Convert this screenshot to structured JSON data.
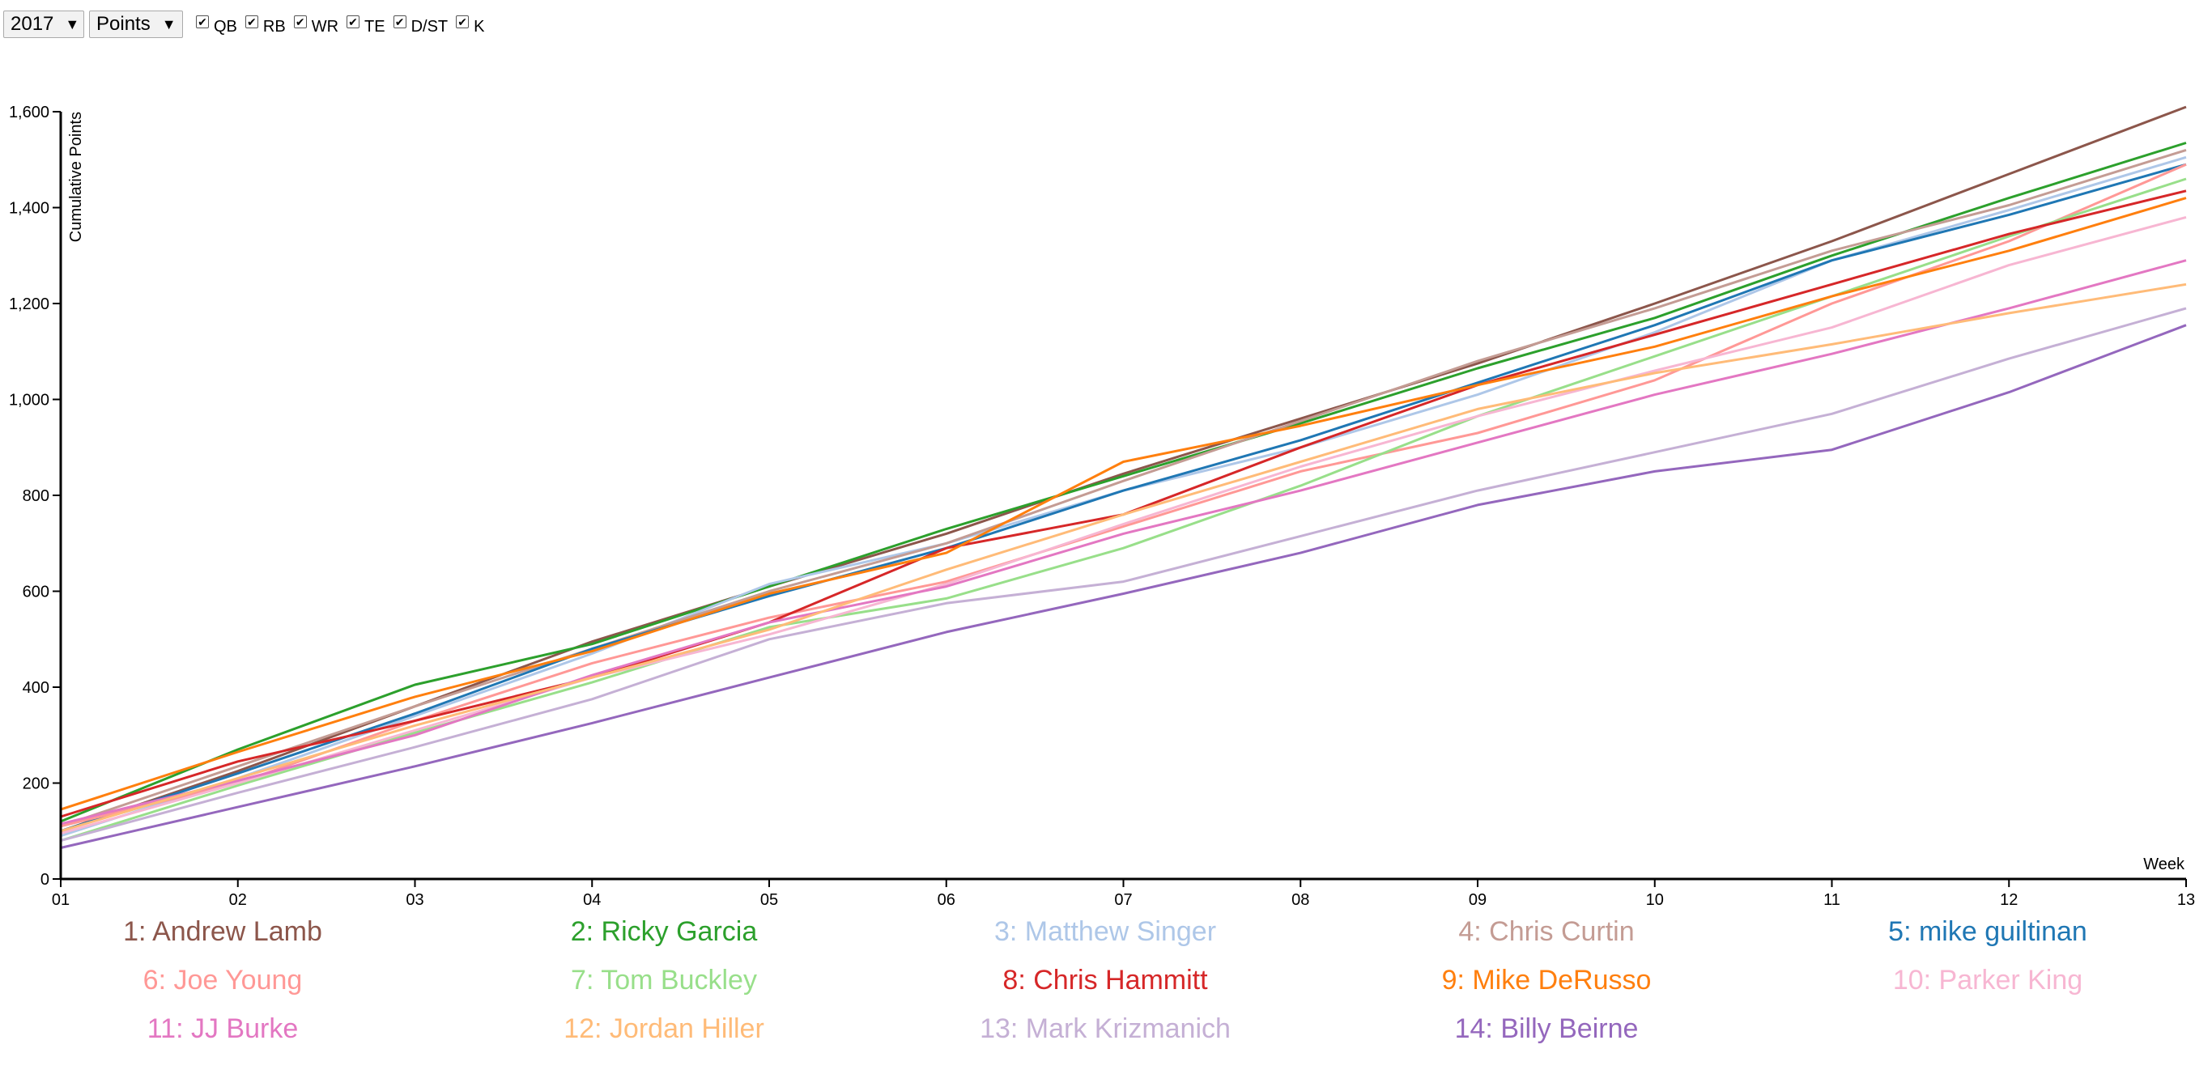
{
  "controls": {
    "year": "2017",
    "metric": "Points",
    "positions": [
      {
        "label": "QB",
        "checked": true
      },
      {
        "label": "RB",
        "checked": true
      },
      {
        "label": "WR",
        "checked": true
      },
      {
        "label": "TE",
        "checked": true
      },
      {
        "label": "D/ST",
        "checked": true
      },
      {
        "label": "K",
        "checked": true
      }
    ]
  },
  "chart_data": {
    "type": "line",
    "xlabel": "Week",
    "ylabel": "Cumulative Points",
    "x": [
      "01",
      "02",
      "03",
      "04",
      "05",
      "06",
      "07",
      "08",
      "09",
      "10",
      "11",
      "12",
      "13"
    ],
    "ylim": [
      0,
      1600
    ],
    "yticks": [
      0,
      200,
      400,
      600,
      800,
      1000,
      1200,
      1400,
      1600
    ],
    "ytick_labels": [
      "0",
      "200",
      "400",
      "600",
      "800",
      "1,000",
      "1,200",
      "1,400",
      "1,600"
    ],
    "grid": false,
    "legend_position": "bottom",
    "series": [
      {
        "name": "1: Andrew Lamb",
        "color": "#8c564b",
        "values": [
          100,
          225,
          360,
          495,
          610,
          720,
          845,
          960,
          1075,
          1200,
          1330,
          1470,
          1610
        ]
      },
      {
        "name": "2: Ricky Garcia",
        "color": "#2ca02c",
        "values": [
          120,
          270,
          405,
          490,
          610,
          730,
          840,
          950,
          1065,
          1170,
          1300,
          1420,
          1535
        ]
      },
      {
        "name": "3: Matthew Singer",
        "color": "#aec7e8",
        "values": [
          90,
          210,
          340,
          470,
          615,
          700,
          810,
          900,
          1010,
          1140,
          1290,
          1395,
          1505
        ]
      },
      {
        "name": "4: Chris Curtin",
        "color": "#c49c94",
        "values": [
          110,
          235,
          360,
          480,
          600,
          700,
          830,
          955,
          1080,
          1190,
          1310,
          1405,
          1520
        ]
      },
      {
        "name": "5: mike guiltinan",
        "color": "#1f77b4",
        "values": [
          100,
          220,
          345,
          480,
          590,
          690,
          810,
          915,
          1035,
          1155,
          1290,
          1385,
          1490
        ]
      },
      {
        "name": "6: Joe Young",
        "color": "#ff9896",
        "values": [
          110,
          200,
          330,
          450,
          545,
          620,
          735,
          850,
          930,
          1040,
          1200,
          1330,
          1490
        ]
      },
      {
        "name": "7: Tom Buckley",
        "color": "#98df8a",
        "values": [
          80,
          195,
          305,
          410,
          525,
          585,
          690,
          820,
          965,
          1090,
          1215,
          1340,
          1460
        ]
      },
      {
        "name": "8: Chris Hammitt",
        "color": "#d62728",
        "values": [
          130,
          245,
          330,
          420,
          535,
          690,
          760,
          900,
          1030,
          1135,
          1240,
          1345,
          1435
        ]
      },
      {
        "name": "9: Mike DeRusso",
        "color": "#ff7f0e",
        "values": [
          145,
          265,
          380,
          475,
          595,
          680,
          870,
          945,
          1030,
          1110,
          1215,
          1310,
          1420
        ]
      },
      {
        "name": "10: Parker King",
        "color": "#f7b6d2",
        "values": [
          95,
          200,
          310,
          420,
          510,
          615,
          740,
          860,
          965,
          1060,
          1150,
          1280,
          1380
        ]
      },
      {
        "name": "11: JJ Burke",
        "color": "#e377c2",
        "values": [
          115,
          205,
          300,
          425,
          535,
          610,
          720,
          810,
          910,
          1010,
          1095,
          1190,
          1290
        ]
      },
      {
        "name": "12: Jordan Hiller",
        "color": "#ffbb78",
        "values": [
          100,
          210,
          320,
          420,
          520,
          645,
          760,
          870,
          980,
          1055,
          1115,
          1180,
          1240
        ]
      },
      {
        "name": "13: Mark Krizmanich",
        "color": "#c5b0d5",
        "values": [
          80,
          180,
          275,
          375,
          500,
          575,
          620,
          715,
          810,
          890,
          970,
          1085,
          1190
        ]
      },
      {
        "name": "14: Billy Beirne",
        "color": "#9467bd",
        "values": [
          65,
          150,
          235,
          325,
          420,
          515,
          595,
          680,
          780,
          850,
          895,
          1015,
          1155
        ]
      }
    ]
  }
}
